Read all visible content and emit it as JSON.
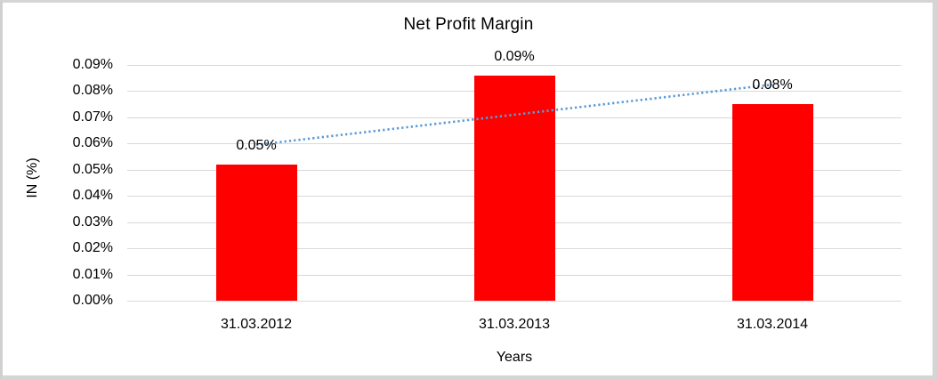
{
  "chart_data": {
    "type": "bar",
    "title": "Net Profit Margin",
    "xlabel": "Years",
    "ylabel": "IN (%)",
    "categories": [
      "31.03.2012",
      "31.03.2013",
      "31.03.2014"
    ],
    "values": [
      0.052,
      0.086,
      0.075
    ],
    "data_labels": [
      "0.05%",
      "0.09%",
      "0.08%"
    ],
    "y_ticks_top_to_bottom": [
      "0.09%",
      "0.08%",
      "0.07%",
      "0.06%",
      "0.05%",
      "0.04%",
      "0.03%",
      "0.02%",
      "0.01%",
      "0.00%"
    ],
    "ylim": [
      0,
      0.09
    ],
    "grid": true,
    "legend": "none",
    "trendline": {
      "type": "linear",
      "style": "dotted"
    }
  },
  "colors": {
    "bar": "#ff0000",
    "gridline": "#d9d9d9",
    "trendline": "#5b9bd5",
    "text": "#000000",
    "frame": "#d5d5d5",
    "background": "#ffffff"
  }
}
